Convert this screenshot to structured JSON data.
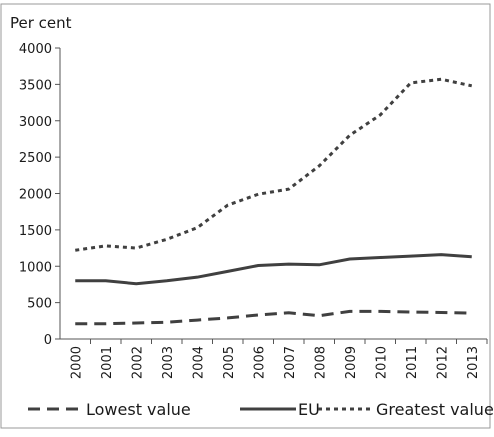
{
  "chart_data": {
    "type": "line",
    "y_axis_label": "Per cent",
    "categories": [
      "2000",
      "2001",
      "2002",
      "2003",
      "2004",
      "2005",
      "2006",
      "2007",
      "2008",
      "2009",
      "2010",
      "2011",
      "2012",
      "2013"
    ],
    "series": [
      {
        "name": "Lowest value",
        "color": "#404040",
        "line_style": "dashed",
        "values": [
          210,
          210,
          220,
          230,
          260,
          290,
          330,
          360,
          320,
          380,
          380,
          370,
          365,
          355
        ]
      },
      {
        "name": "EU",
        "color": "#404040",
        "line_style": "solid",
        "values": [
          800,
          800,
          760,
          800,
          850,
          930,
          1010,
          1030,
          1020,
          1100,
          1120,
          1140,
          1160,
          1130
        ]
      },
      {
        "name": "Greatest value",
        "color": "#404040",
        "line_style": "dotted",
        "values": [
          1220,
          1280,
          1250,
          1370,
          1530,
          1840,
          1990,
          2060,
          2380,
          2800,
          3080,
          3520,
          3570,
          3480
        ]
      }
    ],
    "ylim": [
      0,
      4000
    ],
    "yticks": [
      0,
      500,
      1000,
      1500,
      2000,
      2500,
      3000,
      3500,
      4000
    ],
    "grid": false,
    "legend": "bottom"
  }
}
